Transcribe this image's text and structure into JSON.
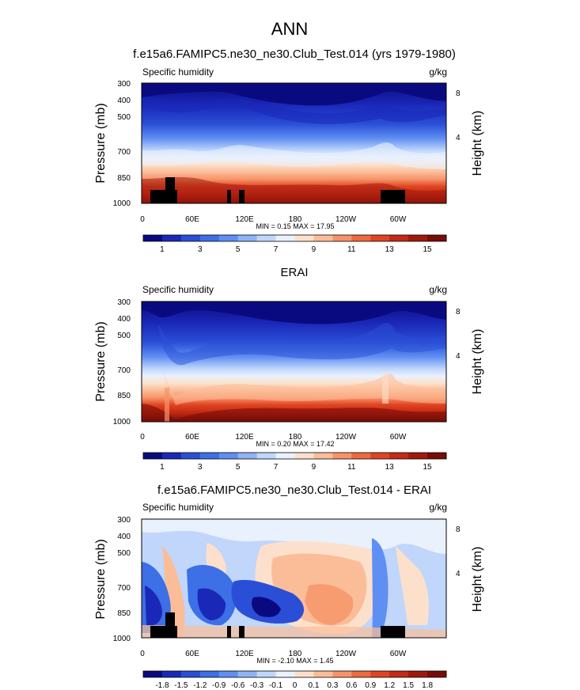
{
  "main_title": "ANN",
  "chart_data": [
    {
      "type": "heatmap",
      "title": "f.e15a6.FAMIPC5.ne30_ne30.Club_Test.014 (yrs 1979-1980)",
      "left_label": "Specific humidity",
      "right_label": "g/kg",
      "ylabel": "Pressure (mb)",
      "ylabel_right": "Height (km)",
      "x_ticks": [
        "0",
        "60E",
        "120E",
        "180",
        "120W",
        "60W"
      ],
      "y_ticks": [
        "300",
        "400",
        "500",
        "700",
        "850",
        "1000"
      ],
      "y_ticks_right": [
        "8",
        "4"
      ],
      "ylim": [
        1000,
        300
      ],
      "min_max_text": "MIN =  0.15  MAX =  17.95",
      "min": 0.15,
      "max": 17.95,
      "colorbar_labels": [
        "1",
        "3",
        "5",
        "7",
        "9",
        "11",
        "13",
        "15"
      ],
      "colorbar_colors": [
        "#0a0a80",
        "#1a28b8",
        "#2a4fd6",
        "#3d6fe6",
        "#5f8ff2",
        "#8fb3f7",
        "#c0d6fb",
        "#e9f1fd",
        "#fde0cc",
        "#fbbd98",
        "#f69468",
        "#ee6a3e",
        "#e04422",
        "#c42a14",
        "#a01a0c",
        "#780c06"
      ],
      "masked": true
    },
    {
      "type": "heatmap",
      "title": "ERAI",
      "left_label": "Specific humidity",
      "right_label": "g/kg",
      "ylabel": "Pressure (mb)",
      "ylabel_right": "Height (km)",
      "x_ticks": [
        "0",
        "60E",
        "120E",
        "180",
        "120W",
        "60W"
      ],
      "y_ticks": [
        "300",
        "400",
        "500",
        "700",
        "850",
        "1000"
      ],
      "y_ticks_right": [
        "8",
        "4"
      ],
      "ylim": [
        1000,
        300
      ],
      "min_max_text": "MIN =  0.20  MAX =  17.42",
      "min": 0.2,
      "max": 17.42,
      "colorbar_labels": [
        "1",
        "3",
        "5",
        "7",
        "9",
        "11",
        "13",
        "15"
      ],
      "colorbar_colors": [
        "#0a0a80",
        "#1a28b8",
        "#2a4fd6",
        "#3d6fe6",
        "#5f8ff2",
        "#8fb3f7",
        "#c0d6fb",
        "#e9f1fd",
        "#fde0cc",
        "#fbbd98",
        "#f69468",
        "#ee6a3e",
        "#e04422",
        "#c42a14",
        "#a01a0c",
        "#780c06"
      ],
      "masked": false
    },
    {
      "type": "heatmap",
      "title": "f.e15a6.FAMIPC5.ne30_ne30.Club_Test.014 - ERAI",
      "left_label": "Specific humidity",
      "right_label": "g/kg",
      "ylabel": "Pressure (mb)",
      "ylabel_right": "Height (km)",
      "x_ticks": [
        "0",
        "60E",
        "120E",
        "180",
        "120W",
        "60W"
      ],
      "y_ticks": [
        "300",
        "400",
        "500",
        "700",
        "850",
        "1000"
      ],
      "y_ticks_right": [
        "8",
        "4"
      ],
      "ylim": [
        1000,
        300
      ],
      "min_max_text": "MIN = -2.10  MAX =  1.45",
      "min": -2.1,
      "max": 1.45,
      "colorbar_labels": [
        "-1.8",
        "-1.5",
        "-1.2",
        "-0.9",
        "-0.6",
        "-0.3",
        "-0.1",
        "0",
        "0.1",
        "0.3",
        "0.6",
        "0.9",
        "1.2",
        "1.5",
        "1.8"
      ],
      "colorbar_colors": [
        "#0a0a80",
        "#1a28b8",
        "#2a4fd6",
        "#3d6fe6",
        "#5f8ff2",
        "#8fb3f7",
        "#c0d6fb",
        "#e9f1fd",
        "#fde0cc",
        "#fbbd98",
        "#f69468",
        "#ee6a3e",
        "#e04422",
        "#c42a14",
        "#a01a0c",
        "#780c06"
      ],
      "masked": true
    }
  ]
}
